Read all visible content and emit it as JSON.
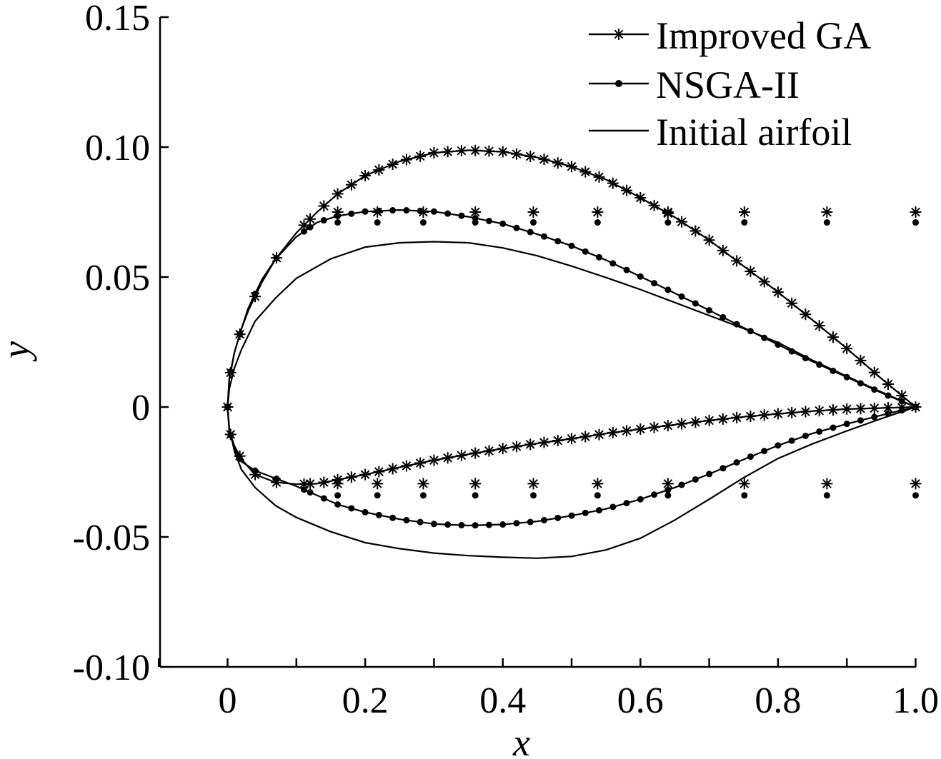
{
  "chart_data": {
    "type": "line",
    "title": "",
    "xlabel": "x",
    "ylabel": "y",
    "xlim": [
      -0.1,
      1.0
    ],
    "ylim": [
      -0.1,
      0.15
    ],
    "x_ticks": [
      0,
      0.2,
      0.4,
      0.6,
      0.8,
      1.0
    ],
    "x_tick_labels": [
      "0",
      "0.2",
      "0.4",
      "0.6",
      "0.8",
      "1.0"
    ],
    "y_ticks": [
      -0.1,
      -0.05,
      0,
      0.05,
      0.1,
      0.15
    ],
    "y_tick_labels": [
      "-0.10",
      "-0.05",
      "0",
      "0.05",
      "0.10",
      "0.15"
    ],
    "x_minor_ticks": [
      -0.1,
      0.1,
      0.3,
      0.5,
      0.7,
      0.9
    ],
    "grid": false,
    "legend_position": "top-right",
    "series": [
      {
        "name": "Improved GA",
        "marker": "star",
        "upper": [
          [
            0.0,
            0.0
          ],
          [
            0.0025,
            0.0105
          ],
          [
            0.01,
            0.021
          ],
          [
            0.02,
            0.03
          ],
          [
            0.03,
            0.037
          ],
          [
            0.05,
            0.048
          ],
          [
            0.07,
            0.057
          ],
          [
            0.1,
            0.067
          ],
          [
            0.13,
            0.075
          ],
          [
            0.16,
            0.082
          ],
          [
            0.2,
            0.089
          ],
          [
            0.25,
            0.0945
          ],
          [
            0.3,
            0.0978
          ],
          [
            0.35,
            0.0988
          ],
          [
            0.4,
            0.0982
          ],
          [
            0.45,
            0.096
          ],
          [
            0.5,
            0.0925
          ],
          [
            0.55,
            0.0875
          ],
          [
            0.6,
            0.0805
          ],
          [
            0.65,
            0.073
          ],
          [
            0.7,
            0.0642
          ],
          [
            0.75,
            0.0542
          ],
          [
            0.8,
            0.0442
          ],
          [
            0.85,
            0.0335
          ],
          [
            0.9,
            0.0225
          ],
          [
            0.95,
            0.011
          ],
          [
            1.0,
            0.0
          ]
        ],
        "lower": [
          [
            0.0,
            0.0
          ],
          [
            0.0025,
            -0.009
          ],
          [
            0.01,
            -0.015
          ],
          [
            0.02,
            -0.02
          ],
          [
            0.04,
            -0.026
          ],
          [
            0.07,
            -0.029
          ],
          [
            0.1,
            -0.0297
          ],
          [
            0.13,
            -0.0295
          ],
          [
            0.16,
            -0.028
          ],
          [
            0.2,
            -0.026
          ],
          [
            0.25,
            -0.0232
          ],
          [
            0.3,
            -0.0205
          ],
          [
            0.35,
            -0.0182
          ],
          [
            0.4,
            -0.016
          ],
          [
            0.45,
            -0.014
          ],
          [
            0.5,
            -0.0122
          ],
          [
            0.55,
            -0.0102
          ],
          [
            0.6,
            -0.0085
          ],
          [
            0.65,
            -0.0068
          ],
          [
            0.7,
            -0.0052
          ],
          [
            0.75,
            -0.0038
          ],
          [
            0.8,
            -0.0026
          ],
          [
            0.85,
            -0.0016
          ],
          [
            0.9,
            -0.0008
          ],
          [
            0.95,
            -0.0004
          ],
          [
            1.0,
            0.0
          ]
        ]
      },
      {
        "name": "NSGA-II",
        "marker": "dot",
        "upper": [
          [
            0.0,
            0.0
          ],
          [
            0.0025,
            0.011
          ],
          [
            0.01,
            0.021
          ],
          [
            0.02,
            0.03
          ],
          [
            0.03,
            0.038
          ],
          [
            0.05,
            0.049
          ],
          [
            0.07,
            0.057
          ],
          [
            0.1,
            0.0655
          ],
          [
            0.13,
            0.071
          ],
          [
            0.16,
            0.0735
          ],
          [
            0.2,
            0.0752
          ],
          [
            0.25,
            0.0758
          ],
          [
            0.3,
            0.0752
          ],
          [
            0.35,
            0.0732
          ],
          [
            0.4,
            0.0705
          ],
          [
            0.45,
            0.0665
          ],
          [
            0.5,
            0.062
          ],
          [
            0.55,
            0.0565
          ],
          [
            0.6,
            0.0502
          ],
          [
            0.65,
            0.0438
          ],
          [
            0.7,
            0.0372
          ],
          [
            0.75,
            0.0305
          ],
          [
            0.8,
            0.024
          ],
          [
            0.85,
            0.0175
          ],
          [
            0.9,
            0.0115
          ],
          [
            0.95,
            0.0055
          ],
          [
            1.0,
            0.0
          ]
        ],
        "lower": [
          [
            0.0,
            0.0
          ],
          [
            0.0025,
            -0.009
          ],
          [
            0.01,
            -0.016
          ],
          [
            0.02,
            -0.021
          ],
          [
            0.04,
            -0.0245
          ],
          [
            0.07,
            -0.0275
          ],
          [
            0.1,
            -0.0305
          ],
          [
            0.13,
            -0.034
          ],
          [
            0.16,
            -0.0375
          ],
          [
            0.2,
            -0.0405
          ],
          [
            0.25,
            -0.0432
          ],
          [
            0.3,
            -0.045
          ],
          [
            0.35,
            -0.0456
          ],
          [
            0.4,
            -0.0452
          ],
          [
            0.45,
            -0.044
          ],
          [
            0.5,
            -0.0418
          ],
          [
            0.55,
            -0.0392
          ],
          [
            0.6,
            -0.0355
          ],
          [
            0.65,
            -0.031
          ],
          [
            0.7,
            -0.0258
          ],
          [
            0.75,
            -0.0202
          ],
          [
            0.8,
            -0.0148
          ],
          [
            0.85,
            -0.0102
          ],
          [
            0.9,
            -0.0065
          ],
          [
            0.95,
            -0.0032
          ],
          [
            1.0,
            0.0
          ]
        ]
      },
      {
        "name": "Initial airfoil",
        "marker": "none",
        "upper": [
          [
            0.0,
            0.0
          ],
          [
            0.0025,
            0.007
          ],
          [
            0.01,
            0.015
          ],
          [
            0.02,
            0.022
          ],
          [
            0.04,
            0.033
          ],
          [
            0.07,
            0.042
          ],
          [
            0.1,
            0.0495
          ],
          [
            0.15,
            0.057
          ],
          [
            0.2,
            0.0615
          ],
          [
            0.25,
            0.0632
          ],
          [
            0.3,
            0.0636
          ],
          [
            0.35,
            0.0632
          ],
          [
            0.4,
            0.0612
          ],
          [
            0.45,
            0.0582
          ],
          [
            0.5,
            0.0542
          ],
          [
            0.55,
            0.0498
          ],
          [
            0.6,
            0.0452
          ],
          [
            0.65,
            0.0402
          ],
          [
            0.7,
            0.0352
          ],
          [
            0.75,
            0.0302
          ],
          [
            0.8,
            0.0248
          ],
          [
            0.85,
            0.018
          ],
          [
            0.9,
            0.0118
          ],
          [
            0.95,
            0.0058
          ],
          [
            1.0,
            0.0
          ]
        ],
        "lower": [
          [
            0.0,
            0.0
          ],
          [
            0.0025,
            -0.008
          ],
          [
            0.01,
            -0.017
          ],
          [
            0.02,
            -0.024
          ],
          [
            0.04,
            -0.031
          ],
          [
            0.07,
            -0.038
          ],
          [
            0.1,
            -0.0425
          ],
          [
            0.15,
            -0.048
          ],
          [
            0.2,
            -0.0522
          ],
          [
            0.25,
            -0.0545
          ],
          [
            0.3,
            -0.0562
          ],
          [
            0.35,
            -0.0572
          ],
          [
            0.4,
            -0.0578
          ],
          [
            0.45,
            -0.0582
          ],
          [
            0.5,
            -0.0575
          ],
          [
            0.55,
            -0.055
          ],
          [
            0.6,
            -0.0505
          ],
          [
            0.65,
            -0.0435
          ],
          [
            0.7,
            -0.0355
          ],
          [
            0.75,
            -0.0272
          ],
          [
            0.8,
            -0.0198
          ],
          [
            0.85,
            -0.0142
          ],
          [
            0.9,
            -0.0092
          ],
          [
            0.95,
            -0.0045
          ],
          [
            1.0,
            0.0
          ]
        ]
      }
    ]
  }
}
